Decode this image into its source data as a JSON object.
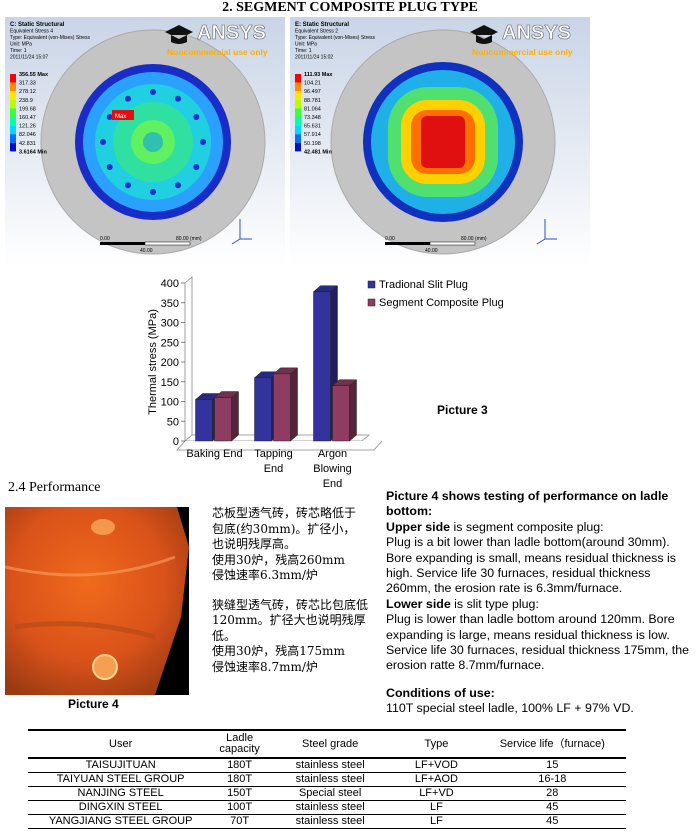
{
  "title": "2. SEGMENT COMPOSITE PLUG TYPE",
  "logo": {
    "name": "ANSYS",
    "note": "Noncommercial use only"
  },
  "simulations": [
    {
      "header": [
        "C: Static Structural",
        "Equivalent Stress 4",
        "Type: Equivalent (von-Mises) Stress",
        "Unit: MPa",
        "Time: 1",
        "2011/11/24 15:07"
      ],
      "legend": [
        "356.55 Max",
        "317.33",
        "278.12",
        "238.9",
        "199.68",
        "160.47",
        "121.26",
        "82.046",
        "42.831",
        "3.6164 Min"
      ],
      "marker": "Max",
      "scale": [
        "0.00",
        "40.00",
        "80.00 (mm)"
      ]
    },
    {
      "header": [
        "E: Static Structural",
        "Equivalent Stress 2",
        "Type: Equivalent (von-Mises) Stress",
        "Unit: MPa",
        "Time: 1",
        "2011/11/24 15:02"
      ],
      "legend": [
        "111.93 Max",
        "104.21",
        "96.497",
        "88.781",
        "81.064",
        "73.348",
        "65.631",
        "57.914",
        "50.198",
        "42.481 Min"
      ],
      "scale": [
        "0.00",
        "40.00",
        "80.00 (mm)"
      ]
    }
  ],
  "chart_data": {
    "type": "bar3d",
    "ylabel": "Thermal stress (MPa)",
    "categories": [
      "Baking End",
      "Tapping\nEnd",
      "Argon\nBlowing\nEnd"
    ],
    "series": [
      {
        "name": "Tradional Slit Plug",
        "color": "#33339e",
        "values": [
          105,
          160,
          378
        ]
      },
      {
        "name": "Segment Composite Plug",
        "color": "#8e3c62",
        "values": [
          110,
          170,
          140
        ]
      }
    ],
    "ylim": [
      0,
      400
    ],
    "yticks": [
      0,
      50,
      100,
      150,
      200,
      250,
      300,
      350,
      400
    ],
    "legend": "upper right"
  },
  "picture3_caption": "Picture 3",
  "section": "2.4 Performance",
  "picture4_caption": "Picture 4",
  "chinese": [
    [
      "芯板型透气砖，砖芯略低于",
      "包底(约30mm)。扩径小，",
      "也说明残厚高。",
      "使用30炉，残高260mm",
      "侵蚀速率6.3mm/炉"
    ],
    [
      "狭缝型透气砖，砖芯比包底低",
      "120mm。扩径大也说明残厚低。",
      "使用30炉，残高175mm",
      "侵蚀速率8.7mm/炉"
    ]
  ],
  "description": {
    "heading": "Picture 4 shows testing of performance on ladle bottom:",
    "upper_label": "Upper side",
    "upper_intro": " is segment composite plug:",
    "upper_text": "Plug is a bit lower than ladle bottom(around 30mm). Bore expanding is small, means residual thickness is high. Service life 30 furnaces, residual thickness 260mm, the erosion rate is 6.3mm/furnace.",
    "lower_label": "Lower side",
    "lower_intro": " is slit type plug:",
    "lower_text": "Plug is lower than ladle bottom around 120mm. Bore expanding is large, means residual thickness is low. Service life 30 furnaces, residual thickness 175mm, the erosion ratte 8.7mm/furnace.",
    "conditions_label": "Conditions of use:",
    "conditions_text": "110T special steel ladle, 100% LF + 97% VD."
  },
  "table": {
    "header": [
      "User",
      "Ladle capacity",
      "Steel grade",
      "Type",
      "Service life（furnace)"
    ],
    "rows": [
      [
        "TAISUJITUAN",
        "180T",
        "stainless steel",
        "LF+VOD",
        "15"
      ],
      [
        "TAIYUAN STEEL GROUP",
        "180T",
        "stainless steel",
        "LF+AOD",
        "16-18"
      ],
      [
        "NANJING STEEL",
        "150T",
        "Special steel",
        "LF+VD",
        "28"
      ],
      [
        "DINGXIN STEEL",
        "100T",
        "stainless steel",
        "LF",
        "45"
      ],
      [
        "YANGJIANG STEEL GROUP",
        "70T",
        "stainless steel",
        "LF",
        "45"
      ]
    ]
  }
}
